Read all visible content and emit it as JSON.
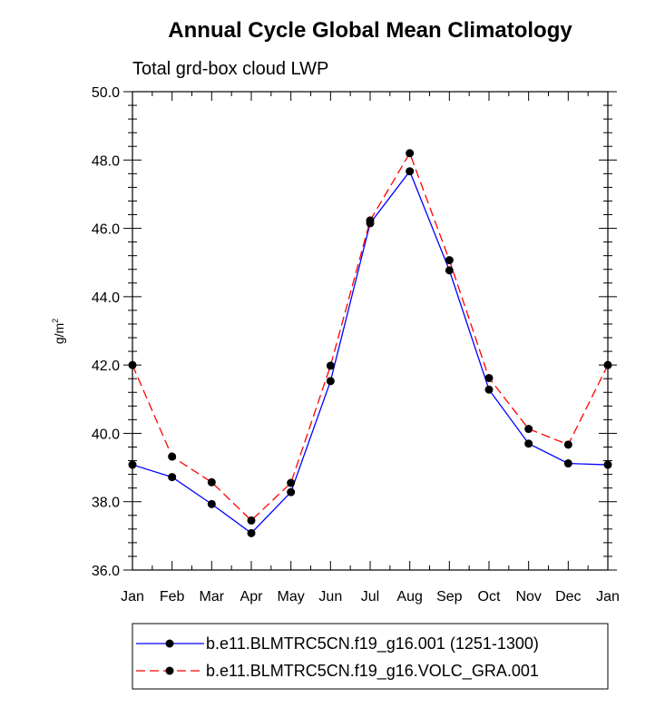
{
  "chart_data": {
    "type": "line",
    "title": "Annual Cycle Global Mean Climatology",
    "subtitle": "Total grd-box cloud LWP",
    "xlabel": "",
    "ylabel_base": "g/m",
    "ylabel_sup": "2",
    "ylim": [
      36.0,
      50.0
    ],
    "yticks": [
      "36.0",
      "38.0",
      "40.0",
      "42.0",
      "44.0",
      "46.0",
      "48.0",
      "50.0"
    ],
    "categories": [
      "Jan",
      "Feb",
      "Mar",
      "Apr",
      "May",
      "Jun",
      "Jul",
      "Aug",
      "Sep",
      "Oct",
      "Nov",
      "Dec",
      "Jan"
    ],
    "series": [
      {
        "name": "b.e11.BLMTRC5CN.f19_g16.001 (1251-1300)",
        "color": "#0000ff",
        "dash": "solid",
        "values": [
          39.08,
          38.72,
          37.93,
          37.08,
          38.28,
          41.53,
          46.15,
          47.67,
          44.77,
          41.28,
          39.7,
          39.12,
          39.08
        ]
      },
      {
        "name": "b.e11.BLMTRC5CN.f19_g16.VOLC_GRA.001",
        "color": "#ff0000",
        "dash": "dashed",
        "values": [
          42.0,
          39.32,
          38.57,
          37.45,
          38.55,
          41.98,
          46.23,
          48.2,
          45.07,
          41.62,
          40.13,
          39.67,
          42.0
        ]
      }
    ]
  }
}
